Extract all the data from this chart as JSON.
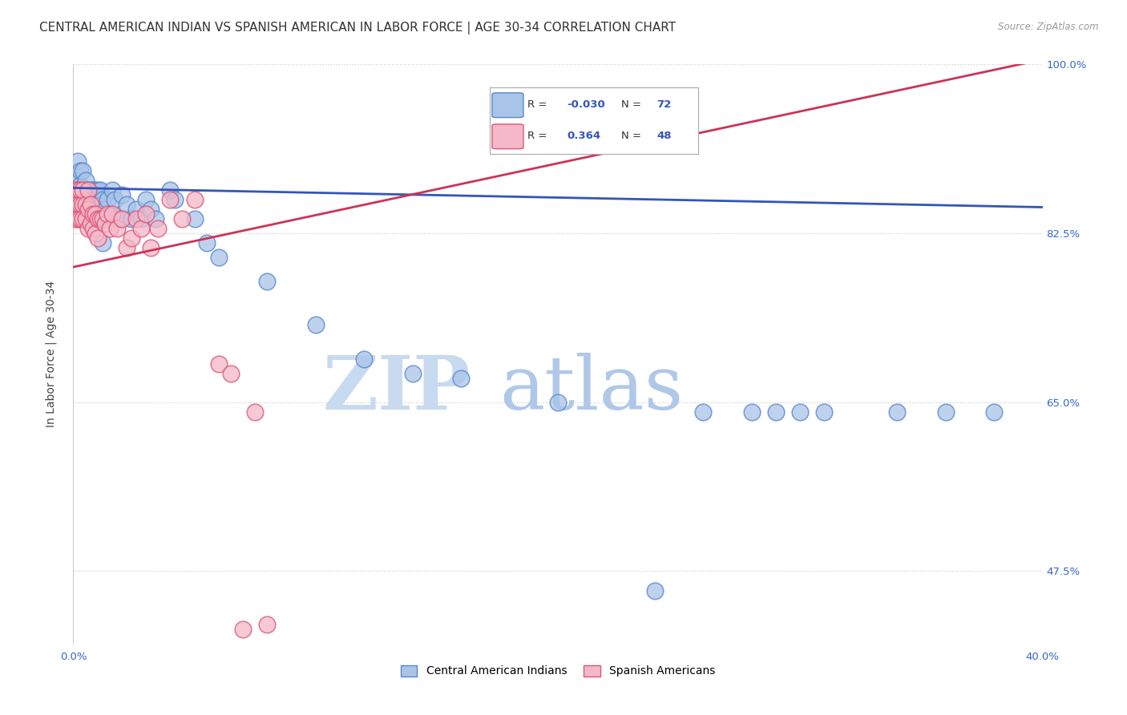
{
  "title": "CENTRAL AMERICAN INDIAN VS SPANISH AMERICAN IN LABOR FORCE | AGE 30-34 CORRELATION CHART",
  "source": "Source: ZipAtlas.com",
  "ylabel": "In Labor Force | Age 30-34",
  "xlim": [
    0.0,
    0.4
  ],
  "ylim": [
    0.4,
    1.0
  ],
  "ytick_values": [
    0.475,
    0.65,
    0.825,
    1.0
  ],
  "ytick_labels": [
    "47.5%",
    "65.0%",
    "82.5%",
    "100.0%"
  ],
  "blue_R": "-0.030",
  "blue_N": "72",
  "pink_R": "0.364",
  "pink_N": "48",
  "blue_color": "#aac4e8",
  "pink_color": "#f5b8c8",
  "blue_edge_color": "#5588cc",
  "pink_edge_color": "#dd5577",
  "blue_line_color": "#3355bb",
  "pink_line_color": "#cc3355",
  "legend_label_blue": "Central American Indians",
  "legend_label_pink": "Spanish Americans",
  "blue_line_x": [
    0.0,
    0.4
  ],
  "blue_line_y": [
    0.872,
    0.852
  ],
  "pink_line_x": [
    0.0,
    0.4
  ],
  "pink_line_y": [
    0.79,
    1.005
  ],
  "blue_scatter_x": [
    0.001,
    0.001,
    0.002,
    0.002,
    0.002,
    0.003,
    0.003,
    0.003,
    0.003,
    0.004,
    0.004,
    0.004,
    0.005,
    0.005,
    0.005,
    0.005,
    0.006,
    0.006,
    0.006,
    0.006,
    0.007,
    0.007,
    0.007,
    0.008,
    0.008,
    0.009,
    0.009,
    0.009,
    0.01,
    0.01,
    0.01,
    0.011,
    0.011,
    0.012,
    0.012,
    0.012,
    0.013,
    0.013,
    0.014,
    0.015,
    0.016,
    0.017,
    0.018,
    0.02,
    0.02,
    0.022,
    0.024,
    0.026,
    0.028,
    0.03,
    0.032,
    0.034,
    0.04,
    0.042,
    0.05,
    0.055,
    0.06,
    0.08,
    0.1,
    0.12,
    0.14,
    0.16,
    0.2,
    0.24,
    0.26,
    0.28,
    0.29,
    0.3,
    0.31,
    0.34,
    0.36,
    0.38
  ],
  "blue_scatter_y": [
    0.88,
    0.86,
    0.85,
    0.87,
    0.9,
    0.855,
    0.875,
    0.84,
    0.89,
    0.87,
    0.86,
    0.89,
    0.88,
    0.85,
    0.86,
    0.87,
    0.86,
    0.84,
    0.87,
    0.855,
    0.87,
    0.85,
    0.835,
    0.87,
    0.85,
    0.87,
    0.845,
    0.86,
    0.87,
    0.855,
    0.84,
    0.84,
    0.87,
    0.86,
    0.84,
    0.815,
    0.85,
    0.84,
    0.86,
    0.845,
    0.87,
    0.86,
    0.84,
    0.865,
    0.84,
    0.855,
    0.84,
    0.85,
    0.84,
    0.86,
    0.85,
    0.84,
    0.87,
    0.86,
    0.84,
    0.815,
    0.8,
    0.775,
    0.73,
    0.695,
    0.68,
    0.675,
    0.65,
    0.455,
    0.64,
    0.64,
    0.64,
    0.64,
    0.64,
    0.64,
    0.64,
    0.64
  ],
  "pink_scatter_x": [
    0.001,
    0.001,
    0.001,
    0.002,
    0.002,
    0.002,
    0.003,
    0.003,
    0.003,
    0.004,
    0.004,
    0.004,
    0.005,
    0.005,
    0.006,
    0.006,
    0.006,
    0.007,
    0.007,
    0.008,
    0.008,
    0.009,
    0.009,
    0.01,
    0.01,
    0.011,
    0.012,
    0.013,
    0.014,
    0.015,
    0.016,
    0.018,
    0.02,
    0.022,
    0.024,
    0.026,
    0.028,
    0.03,
    0.032,
    0.035,
    0.04,
    0.045,
    0.05,
    0.06,
    0.065,
    0.07,
    0.075,
    0.08
  ],
  "pink_scatter_y": [
    0.87,
    0.86,
    0.84,
    0.87,
    0.855,
    0.84,
    0.87,
    0.855,
    0.84,
    0.855,
    0.84,
    0.87,
    0.84,
    0.855,
    0.87,
    0.85,
    0.83,
    0.855,
    0.835,
    0.845,
    0.83,
    0.845,
    0.825,
    0.84,
    0.82,
    0.84,
    0.84,
    0.835,
    0.845,
    0.83,
    0.845,
    0.83,
    0.84,
    0.81,
    0.82,
    0.84,
    0.83,
    0.845,
    0.81,
    0.83,
    0.86,
    0.84,
    0.86,
    0.69,
    0.68,
    0.415,
    0.64,
    0.42
  ],
  "watermark_zip": "ZIP",
  "watermark_atlas": "atlas",
  "background_color": "#ffffff",
  "grid_color": "#cccccc",
  "title_fontsize": 11,
  "axis_fontsize": 10,
  "tick_fontsize": 9.5
}
